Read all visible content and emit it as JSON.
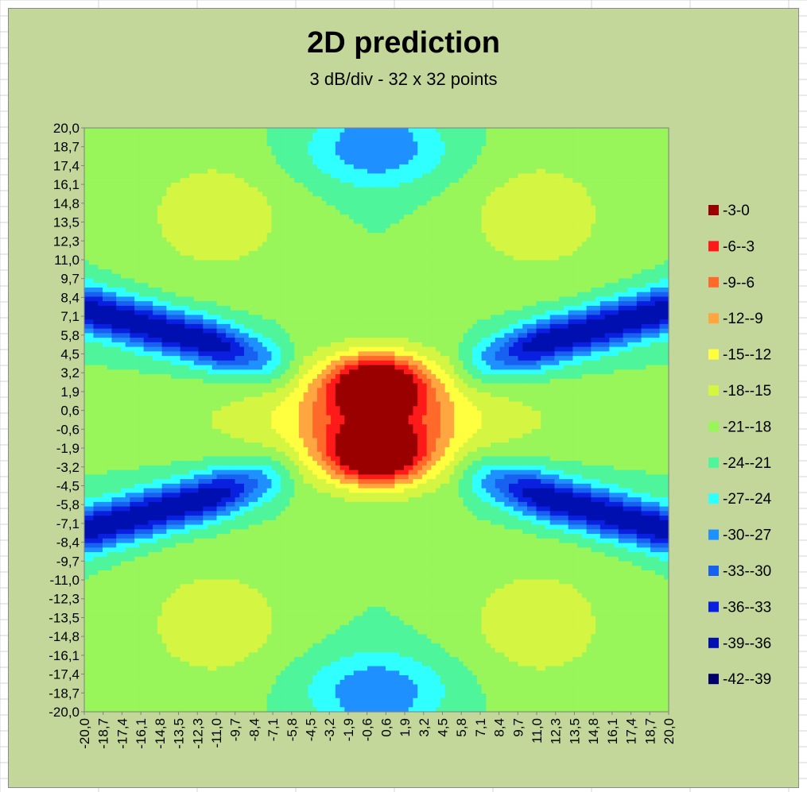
{
  "chart_data": {
    "type": "heatmap",
    "title": "2D prediction",
    "subtitle": "3 dB/div - 32 x 32 points",
    "xlabel": "",
    "ylabel": "",
    "x_ticks": [
      "-20,0",
      "-18,7",
      "-17,4",
      "-16,1",
      "-14,8",
      "-13,5",
      "-12,3",
      "-11,0",
      "-9,7",
      "-8,4",
      "-7,1",
      "-5,8",
      "-4,5",
      "-3,2",
      "-1,9",
      "-0,6",
      "0,6",
      "1,9",
      "3,2",
      "4,5",
      "5,8",
      "7,1",
      "8,4",
      "9,7",
      "11,0",
      "12,3",
      "13,5",
      "14,8",
      "16,1",
      "17,4",
      "18,7",
      "20,0"
    ],
    "y_ticks": [
      "20,0",
      "18,7",
      "17,4",
      "16,1",
      "14,8",
      "13,5",
      "12,3",
      "11,0",
      "9,7",
      "8,4",
      "7,1",
      "5,8",
      "4,5",
      "3,2",
      "1,9",
      "0,6",
      "-0,6",
      "-1,9",
      "-3,2",
      "-4,5",
      "-5,8",
      "-7,1",
      "-8,4",
      "-9,7",
      "-11,0",
      "-12,3",
      "-13,5",
      "-14,8",
      "-16,1",
      "-17,4",
      "-18,7",
      "-20,0"
    ],
    "xlim": [
      -20,
      20
    ],
    "ylim": [
      -20,
      20
    ],
    "grid": false,
    "legend_position": "right",
    "legend": [
      {
        "label": "-3-0",
        "color": "#9a0000"
      },
      {
        "label": "-6--3",
        "color": "#ff1a1a"
      },
      {
        "label": "-9--6",
        "color": "#ff6a2a"
      },
      {
        "label": "-12--9",
        "color": "#ffa640"
      },
      {
        "label": "-15--12",
        "color": "#ffff40"
      },
      {
        "label": "-18--15",
        "color": "#d4f542"
      },
      {
        "label": "-21--18",
        "color": "#98f55a"
      },
      {
        "label": "-24--21",
        "color": "#4ef59a"
      },
      {
        "label": "-27--24",
        "color": "#30ffff"
      },
      {
        "label": "-30--27",
        "color": "#1e90ff"
      },
      {
        "label": "-33--30",
        "color": "#1860f0"
      },
      {
        "label": "-36--33",
        "color": "#0a20e0"
      },
      {
        "label": "-39--36",
        "color": "#0010b0"
      },
      {
        "label": "-42--39",
        "color": "#00006a"
      }
    ],
    "grid_size": [
      32,
      32
    ],
    "step_db": 3,
    "min_db": -42,
    "max_db": 0
  }
}
